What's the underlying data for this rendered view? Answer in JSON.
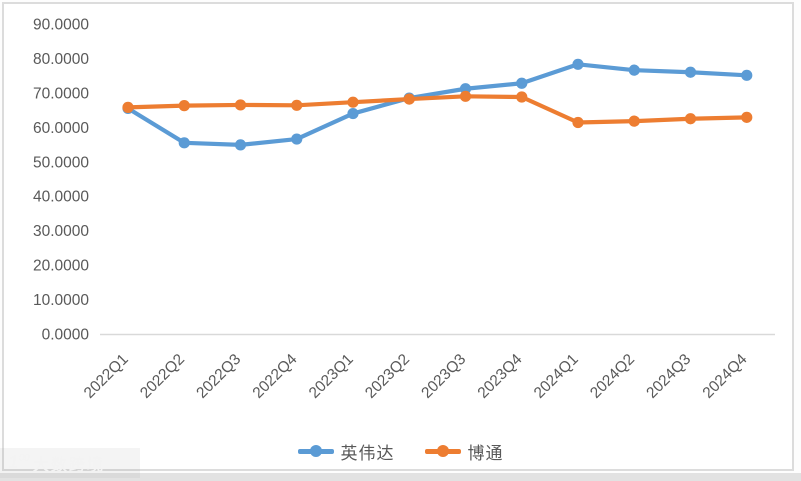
{
  "colors": {
    "nvidia_blue": "#5B9BD5",
    "broadcom_orange": "#ED7D31",
    "axis_text": "#595959",
    "axis_line": "#D9D9D9",
    "frame_border": "#DCDCDC"
  },
  "chart_data": {
    "type": "line",
    "categories": [
      "2022Q1",
      "2022Q2",
      "2022Q3",
      "2022Q4",
      "2023Q1",
      "2023Q2",
      "2023Q3",
      "2023Q4",
      "2024Q1",
      "2024Q2",
      "2024Q3",
      "2024Q4"
    ],
    "series": [
      {
        "name": "英伟达",
        "color": "#5B9BD5",
        "values": [
          65.5,
          55.5,
          54.9,
          56.6,
          64.0,
          68.5,
          71.2,
          72.8,
          78.3,
          76.6,
          76.0,
          75.1
        ]
      },
      {
        "name": "博通",
        "color": "#ED7D31",
        "values": [
          65.8,
          66.3,
          66.5,
          66.4,
          67.3,
          68.2,
          69.0,
          68.8,
          61.4,
          61.8,
          62.5,
          62.9
        ]
      }
    ],
    "title": "",
    "xlabel": "",
    "ylabel": "",
    "ylim": [
      0,
      90
    ],
    "y_tick_step": 10,
    "y_tick_labels": [
      "0.0000",
      "10.0000",
      "20.0000",
      "30.0000",
      "40.0000",
      "50.0000",
      "60.0000",
      "70.0000",
      "80.0000",
      "90.0000"
    ],
    "grid": false,
    "legend_position": "bottom",
    "marker": "circle",
    "x_label_rotation_deg": 45
  },
  "legend": {
    "items": [
      {
        "label": "英伟达"
      },
      {
        "label": "博通"
      }
    ]
  },
  "watermark": {
    "logo_main": "1",
    "logo_sup": "00",
    "text": "大数跨境"
  }
}
